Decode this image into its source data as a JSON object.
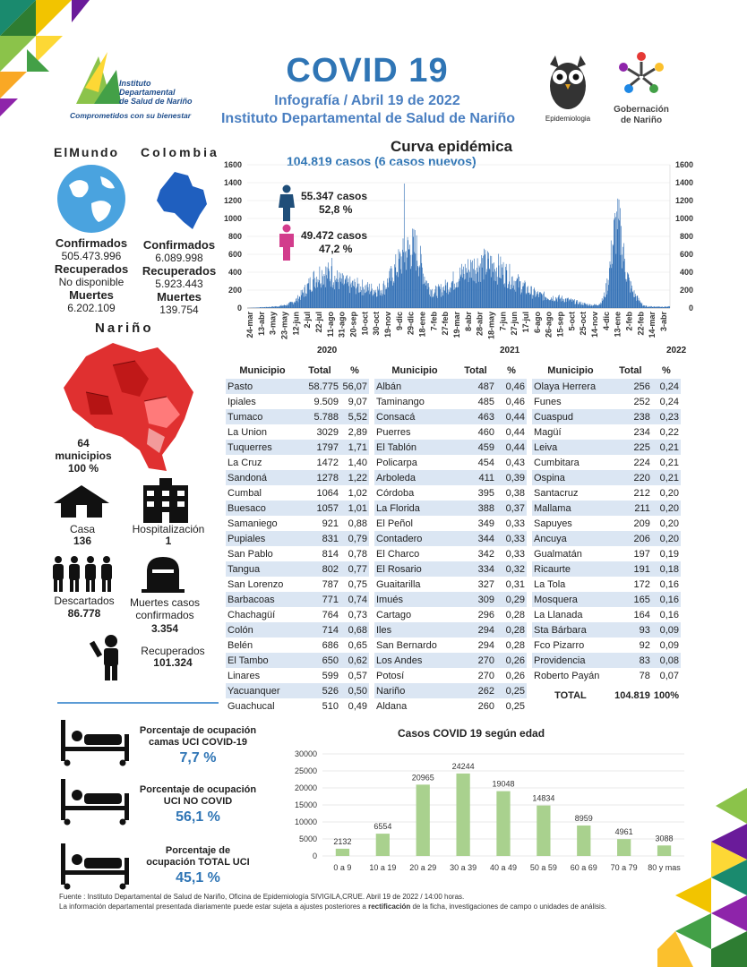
{
  "header": {
    "institute_logo_lines": [
      "Instituto",
      "Departamental",
      "de Salud de Nariño"
    ],
    "institute_tagline": "Comprometidos con su bienestar",
    "title": "COVID 19",
    "subtitle": "Infografía / Abril 19 de 2022",
    "subtitle2": "Instituto Departamental de Salud de Nariño",
    "epi_label": "Epidemiologia",
    "gob_label1": "Gobernación",
    "gob_label2": "de Nariño"
  },
  "world": {
    "label1": "ElMundo",
    "confirmed_label": "Confirmados",
    "confirmed": "505.473.996",
    "recovered_label": "Recuperados",
    "recovered": "No disponible",
    "deaths_label": "Muertes",
    "deaths": "6.202.109"
  },
  "colombia": {
    "label": "Colombia",
    "confirmed_label": "Confirmados",
    "confirmed": "6.089.998",
    "recovered_label": "Recuperados",
    "recovered": "5.923.443",
    "deaths_label": "Muertes",
    "deaths": "139.754"
  },
  "narino": {
    "label": "Nariño",
    "municipios_count": "64",
    "municipios_label": "municipios",
    "municipios_pct": "100 %",
    "casa_label": "Casa",
    "casa": "136",
    "hosp_label": "Hospitalización",
    "hosp": "1",
    "descartados_label": "Descartados",
    "descartados": "86.778",
    "muertes_label1": "Muertes casos",
    "muertes_label2": "confirmados",
    "muertes": "3.354",
    "recuperados_label": "Recuperados",
    "recuperados": "101.324"
  },
  "curve": {
    "title": "Curva epidémica",
    "subtitle": "104.819 casos (6 casos nuevos)",
    "male_cases": "55.347 casos",
    "male_pct": "52,8 %",
    "female_cases": "49.472 casos",
    "female_pct": "47,2 %",
    "y_ticks": [
      "0",
      "200",
      "400",
      "600",
      "800",
      "1000",
      "1200",
      "1400",
      "1600"
    ],
    "x_ticks": [
      "24-mar",
      "13-abr",
      "3-may",
      "23-may",
      "12-jun",
      "2-jul",
      "22-jul",
      "11-ago",
      "31-ago",
      "20-sep",
      "10-oct",
      "30-oct",
      "19-nov",
      "9-dic",
      "29-dic",
      "18-ene",
      "7-feb",
      "27-feb",
      "19-mar",
      "8-abr",
      "28-abr",
      "18-may",
      "7-jun",
      "27-jun",
      "17-jul",
      "6-ago",
      "26-ago",
      "15-sep",
      "5-oct",
      "25-oct",
      "14-nov",
      "4-dic",
      "13-ene",
      "2-feb",
      "22-feb",
      "14-mar",
      "3-abr"
    ],
    "years": [
      "2020",
      "2021",
      "2022"
    ]
  },
  "table": {
    "headers": [
      "Municipio",
      "Total",
      "%"
    ],
    "col1": [
      [
        "Pasto",
        "58.775",
        "56,07"
      ],
      [
        "Ipiales",
        "9.509",
        "9,07"
      ],
      [
        "Tumaco",
        "5.788",
        "5,52"
      ],
      [
        "La Union",
        "3029",
        "2,89"
      ],
      [
        "Tuquerres",
        "1797",
        "1,71"
      ],
      [
        "La Cruz",
        "1472",
        "1,40"
      ],
      [
        "Sandoná",
        "1278",
        "1,22"
      ],
      [
        "Cumbal",
        "1064",
        "1,02"
      ],
      [
        "Buesaco",
        "1057",
        "1,01"
      ],
      [
        "Samaniego",
        "921",
        "0,88"
      ],
      [
        "Pupiales",
        "831",
        "0,79"
      ],
      [
        "San Pablo",
        "814",
        "0,78"
      ],
      [
        "Tangua",
        "802",
        "0,77"
      ],
      [
        "San Lorenzo",
        "787",
        "0,75"
      ],
      [
        "Barbacoas",
        "771",
        "0,74"
      ],
      [
        "Chachagüí",
        "764",
        "0,73"
      ],
      [
        "Colón",
        "714",
        "0,68"
      ],
      [
        "Belén",
        "686",
        "0,65"
      ],
      [
        "El Tambo",
        "650",
        "0,62"
      ],
      [
        "Linares",
        "599",
        "0,57"
      ],
      [
        "Yacuanquer",
        "526",
        "0,50"
      ],
      [
        "Guachucal",
        "510",
        "0,49"
      ]
    ],
    "col2": [
      [
        "Albán",
        "487",
        "0,46"
      ],
      [
        "Taminango",
        "485",
        "0,46"
      ],
      [
        "Consacá",
        "463",
        "0,44"
      ],
      [
        "Puerres",
        "460",
        "0,44"
      ],
      [
        "El Tablón",
        "459",
        "0,44"
      ],
      [
        "Policarpa",
        "454",
        "0,43"
      ],
      [
        "Arboleda",
        "411",
        "0,39"
      ],
      [
        "Córdoba",
        "395",
        "0,38"
      ],
      [
        "La Florida",
        "388",
        "0,37"
      ],
      [
        "El Peñol",
        "349",
        "0,33"
      ],
      [
        "Contadero",
        "344",
        "0,33"
      ],
      [
        "El Charco",
        "342",
        "0,33"
      ],
      [
        "El Rosario",
        "334",
        "0,32"
      ],
      [
        "Guaitarilla",
        "327",
        "0,31"
      ],
      [
        "Imués",
        "309",
        "0,29"
      ],
      [
        "Cartago",
        "296",
        "0,28"
      ],
      [
        "Iles",
        "294",
        "0,28"
      ],
      [
        "San Bernardo",
        "294",
        "0,28"
      ],
      [
        "Los Andes",
        "270",
        "0,26"
      ],
      [
        "Potosí",
        "270",
        "0,26"
      ],
      [
        "Nariño",
        "262",
        "0,25"
      ],
      [
        "Aldana",
        "260",
        "0,25"
      ]
    ],
    "col3": [
      [
        "Olaya Herrera",
        "256",
        "0,24"
      ],
      [
        "Funes",
        "252",
        "0,24"
      ],
      [
        "Cuaspud",
        "238",
        "0,23"
      ],
      [
        "Magüí",
        "234",
        "0,22"
      ],
      [
        "Leiva",
        "225",
        "0,21"
      ],
      [
        "Cumbitara",
        "224",
        "0,21"
      ],
      [
        "Ospina",
        "220",
        "0,21"
      ],
      [
        "Santacruz",
        "212",
        "0,20"
      ],
      [
        "Mallama",
        "211",
        "0,20"
      ],
      [
        "Sapuyes",
        "209",
        "0,20"
      ],
      [
        "Ancuya",
        "206",
        "0,20"
      ],
      [
        "Gualmatán",
        "197",
        "0,19"
      ],
      [
        "Ricaurte",
        "191",
        "0,18"
      ],
      [
        "La Tola",
        "172",
        "0,16"
      ],
      [
        "Mosquera",
        "165",
        "0,16"
      ],
      [
        "La Llanada",
        "164",
        "0,16"
      ],
      [
        "Sta Bárbara",
        "93",
        "0,09"
      ],
      [
        "Fco Pizarro",
        "92",
        "0,09"
      ],
      [
        "Providencia",
        "83",
        "0,08"
      ],
      [
        "Roberto Payán",
        "78",
        "0,07"
      ]
    ],
    "total_label": "TOTAL",
    "total": "104.819",
    "total_pct": "100%"
  },
  "occupancy": [
    {
      "label1": "Porcentaje de ocupación",
      "label2": "camas UCI COVID-19",
      "value": "7,7 %"
    },
    {
      "label1": "Porcentaje de ocupación",
      "label2": "UCI NO COVID",
      "value": "56,1 %"
    },
    {
      "label1": "Porcentaje de",
      "label2": "ocupación TOTAL UCI",
      "value": "45,1 %"
    }
  ],
  "chart_data": {
    "type": "bar",
    "title": "Casos COVID 19  según edad",
    "categories": [
      "0 a 9",
      "10 a 19",
      "20 a 29",
      "30 a 39",
      "40 a 49",
      "50 a 59",
      "60 a 69",
      "70 a 79",
      "80 y mas"
    ],
    "values": [
      2132,
      6554,
      20965,
      24244,
      19048,
      14834,
      8959,
      4961,
      3088
    ],
    "ylim": [
      0,
      30000
    ],
    "y_ticks": [
      "0",
      "5000",
      "10000",
      "15000",
      "20000",
      "25000",
      "30000"
    ],
    "color": "#a9d18e",
    "grid": true
  },
  "footer": {
    "line1": "Fuente : Instituto Departamental de Salud de Nariño, Oficina de Epidemiología SIVIGILA,CRUE.  Abril  19 de 2022 / 14:00  horas.",
    "line2a": "La información departamental  presentada diariamente puede estar sujeta a ajustes posteriores a ",
    "line2b": "rectificación",
    "line2c": " de la ficha, investigaciones de campo o unidades de análisis."
  }
}
